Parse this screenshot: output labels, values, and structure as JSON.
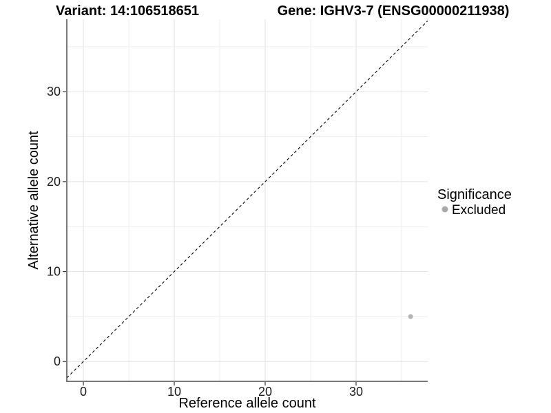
{
  "page": {
    "background": "#ffffff"
  },
  "chart_data": {
    "type": "scatter",
    "title_left": "Variant: 14:106518651",
    "title_right": "Gene: IGHV3-7 (ENSG00000211938)",
    "xlabel": "Reference allele count",
    "ylabel": "Alternative allele count",
    "xlim": [
      -1.82,
      37.88
    ],
    "ylim": [
      -2.2,
      38.05
    ],
    "x_major_ticks": [
      0,
      10,
      20,
      30
    ],
    "x_minor_ticks": [
      5,
      15,
      25,
      35
    ],
    "y_major_ticks": [
      0,
      10,
      20,
      30
    ],
    "y_minor_ticks": [
      5,
      15,
      25,
      35
    ],
    "grid": {
      "visible": true,
      "major_color": "#e2e2e2",
      "minor_color": "#eeeeee"
    },
    "identity_line": {
      "slope": 1,
      "intercept": 0,
      "style": "dashed",
      "color": "#000000"
    },
    "series": [
      {
        "name": "Excluded",
        "color": "#b4b4b4",
        "points": [
          {
            "x": 36,
            "y": 5
          }
        ]
      }
    ],
    "legend": {
      "title": "Significance",
      "position": "right",
      "entries": [
        {
          "label": "Excluded",
          "color": "#a8a8a8"
        }
      ]
    }
  },
  "colors": {
    "axis_line": "#4d4d4d",
    "tick_mark": "#333333"
  }
}
